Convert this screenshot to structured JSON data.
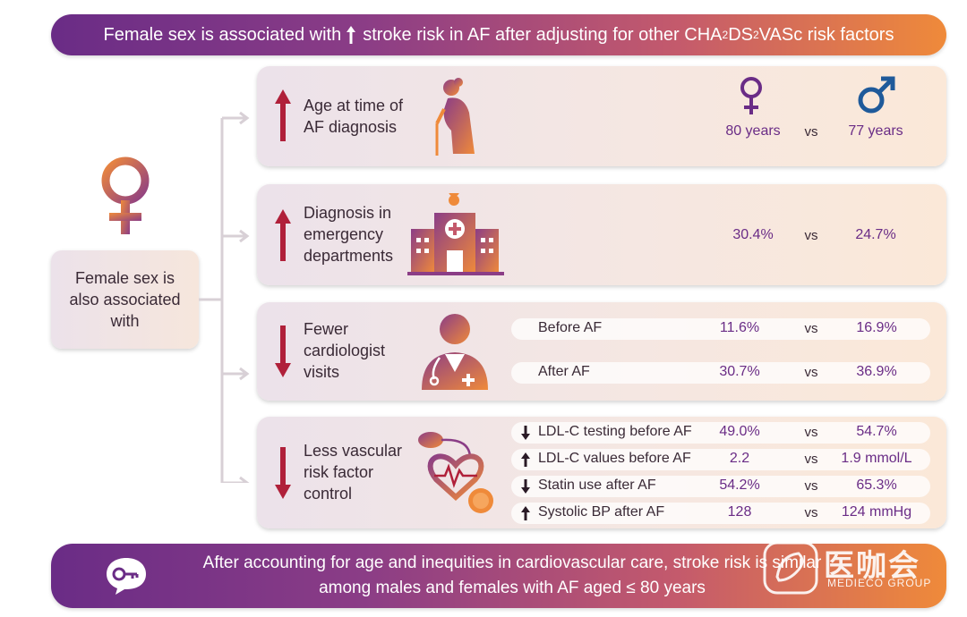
{
  "top_banner": {
    "pre": "Female sex is associated with",
    "post": "stroke risk in AF after adjusting for other CHA",
    "sub1": "2",
    "mid": "DS",
    "sub2": "2",
    "end": "VASc risk factors"
  },
  "left_box": {
    "text": "Female sex is also associated with"
  },
  "cards": {
    "age": {
      "label_line1": "Age at time of",
      "label_line2": "AF diagnosis",
      "female": "80 years",
      "vs": "vs",
      "male": "77 years"
    },
    "emergency": {
      "label_line1": "Diagnosis in",
      "label_line2": "emergency",
      "label_line3": "departments",
      "female": "30.4%",
      "vs": "vs",
      "male": "24.7%"
    },
    "cardiologist": {
      "label_line1": "Fewer",
      "label_line2": "cardiologist",
      "label_line3": "visits",
      "rows": [
        {
          "label": "Before AF",
          "female": "11.6%",
          "vs": "vs",
          "male": "16.9%"
        },
        {
          "label": "After AF",
          "female": "30.7%",
          "vs": "vs",
          "male": "36.9%"
        }
      ]
    },
    "vascular": {
      "label_line1": "Less vascular",
      "label_line2": "risk factor",
      "label_line3": "control",
      "rows": [
        {
          "direction": "down",
          "label": "LDL-C testing before AF",
          "female": "49.0%",
          "vs": "vs",
          "male": "54.7%"
        },
        {
          "direction": "up",
          "label": "LDL-C values before AF",
          "female": "2.2",
          "vs": "vs",
          "male": "1.9 mmol/L"
        },
        {
          "direction": "down",
          "label": "Statin use after AF",
          "female": "54.2%",
          "vs": "vs",
          "male": "65.3%"
        },
        {
          "direction": "up",
          "label": "Systolic BP after AF",
          "female": "128",
          "vs": "vs",
          "male": "124 mmHg"
        }
      ]
    }
  },
  "bottom_banner": {
    "line1": "After accounting for age and inequities in cardiovascular care, stroke risk is similar",
    "line2": "among males and females with AF aged ≤ 80 years"
  },
  "watermark": {
    "cn": "医咖会",
    "en": "MEDIECO GROUP"
  },
  "colors": {
    "purple": "#6a2c86",
    "orange": "#ef8a3a",
    "red": "#b0203a"
  }
}
